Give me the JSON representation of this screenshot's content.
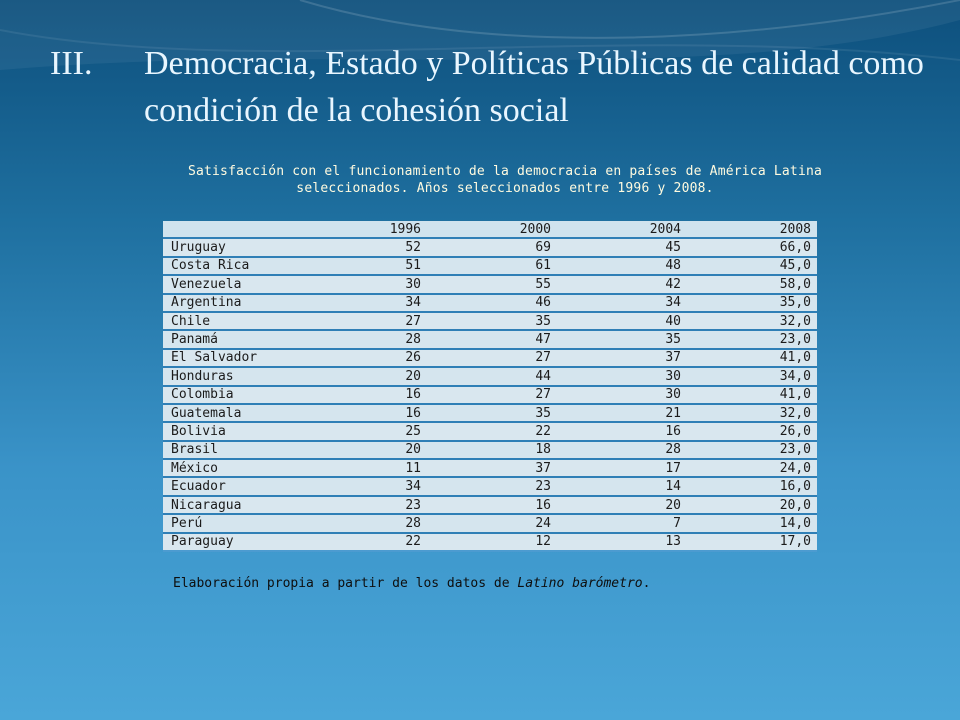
{
  "slide": {
    "number": "III.",
    "title": "Democracia, Estado y Políticas Públicas de calidad como condición de la cohesión social"
  },
  "table": {
    "title_line1": "Satisfacción con el funcionamiento de la democracia en países de América Latina",
    "title_line2": "seleccionados. Años seleccionados entre 1996 y 2008.",
    "columns": [
      "1996",
      "2000",
      "2004",
      "2008"
    ],
    "rows": [
      {
        "country": "Uruguay",
        "v": [
          "52",
          "69",
          "45",
          "66,0"
        ]
      },
      {
        "country": "Costa Rica",
        "v": [
          "51",
          "61",
          "48",
          "45,0"
        ]
      },
      {
        "country": "Venezuela",
        "v": [
          "30",
          "55",
          "42",
          "58,0"
        ]
      },
      {
        "country": "Argentina",
        "v": [
          "34",
          "46",
          "34",
          "35,0"
        ]
      },
      {
        "country": "Chile",
        "v": [
          "27",
          "35",
          "40",
          "32,0"
        ]
      },
      {
        "country": "Panamá",
        "v": [
          "28",
          "47",
          "35",
          "23,0"
        ]
      },
      {
        "country": "El Salvador",
        "v": [
          "26",
          "27",
          "37",
          "41,0"
        ]
      },
      {
        "country": "Honduras",
        "v": [
          "20",
          "44",
          "30",
          "34,0"
        ]
      },
      {
        "country": "Colombia",
        "v": [
          "16",
          "27",
          "30",
          "41,0"
        ]
      },
      {
        "country": "Guatemala",
        "v": [
          "16",
          "35",
          "21",
          "32,0"
        ]
      },
      {
        "country": "Bolivia",
        "v": [
          "25",
          "22",
          "16",
          "26,0"
        ]
      },
      {
        "country": "Brasil",
        "v": [
          "20",
          "18",
          "28",
          "23,0"
        ]
      },
      {
        "country": "México",
        "v": [
          "11",
          "37",
          "17",
          "24,0"
        ]
      },
      {
        "country": "Ecuador",
        "v": [
          "34",
          "23",
          "14",
          "16,0"
        ]
      },
      {
        "country": "Nicaragua",
        "v": [
          "23",
          "16",
          "20",
          "20,0"
        ]
      },
      {
        "country": "Perú",
        "v": [
          "28",
          "24",
          "7",
          "14,0"
        ]
      },
      {
        "country": "Paraguay",
        "v": [
          "22",
          "12",
          "13",
          "17,0"
        ]
      }
    ]
  },
  "note": {
    "prefix": "Elaboración propia a partir de los datos de ",
    "source": "Latino barómetro",
    "suffix": "."
  }
}
